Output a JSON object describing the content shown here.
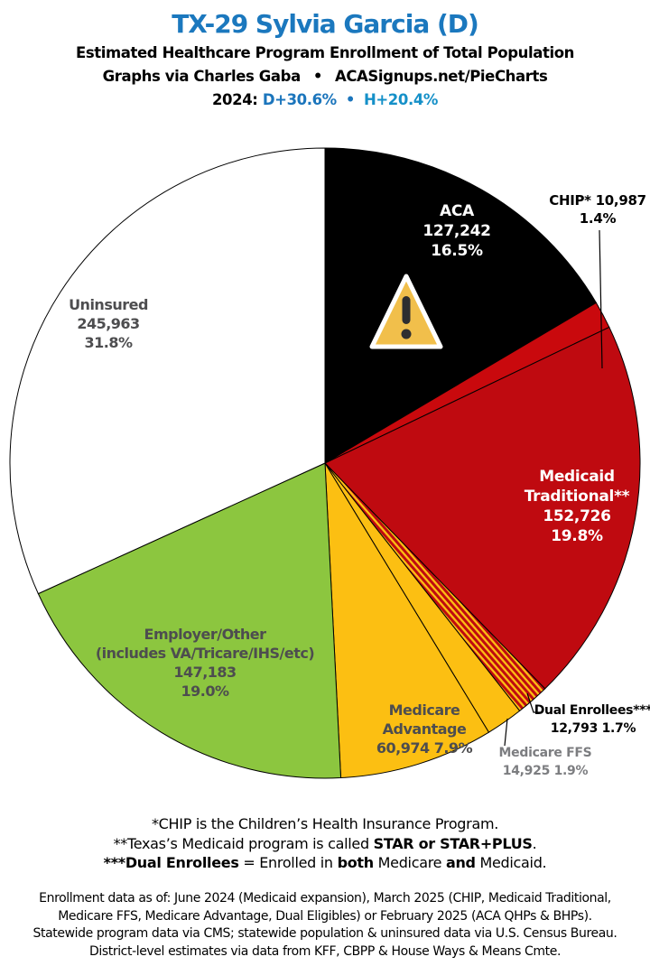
{
  "header": {
    "title": "TX-29 Sylvia Garcia (D)",
    "subtitle": "Estimated Healthcare Program Enrollment of Total Population",
    "credit_left": "Graphs via Charles Gaba",
    "credit_bullet": "•",
    "credit_right": "ACASignups.net/PieCharts",
    "year_label": "2024:",
    "d_margin": "D+30.6%",
    "margin_bullet": "•",
    "h_margin": "H+20.4%",
    "colors": {
      "title_blue": "#1B78BE",
      "d_blue": "#1B75BC",
      "h_teal": "#1590C8",
      "black": "#000000"
    }
  },
  "chart_data": {
    "type": "pie",
    "title": "Estimated Healthcare Program Enrollment of Total Population",
    "direction": "clockwise",
    "start_angle_deg": 0,
    "total_pct": 100.0,
    "stripe_colors": [
      "#BF0A10",
      "#FCBF12"
    ],
    "outline_color": "#000000",
    "slices": [
      {
        "name": "ACA",
        "enrollment": "127,242",
        "pct": 16.5,
        "color": "#000000",
        "label_lines": [
          "ACA",
          "127,242",
          "16.5%"
        ]
      },
      {
        "name": "CHIP",
        "enrollment": "10,987",
        "pct": 1.4,
        "color": "#C9090D",
        "label_lines": [
          "CHIP* 10,987",
          "1.4%"
        ]
      },
      {
        "name": "Medicaid Traditional",
        "enrollment": "152,726",
        "pct": 19.8,
        "color": "#BF0A10",
        "label_lines": [
          "Medicaid",
          "Traditional**",
          "152,726",
          "19.8%"
        ]
      },
      {
        "name": "Dual Enrollees",
        "enrollment": "12,793",
        "pct": 1.7,
        "color": "striped-red-gold",
        "label_lines": [
          "Dual Enrollees***",
          "12,793 1.7%"
        ]
      },
      {
        "name": "Medicare FFS",
        "enrollment": "14,925",
        "pct": 1.9,
        "color": "#FCBF12",
        "label_lines": [
          "Medicare FFS",
          "14,925 1.9%"
        ]
      },
      {
        "name": "Medicare Advantage",
        "enrollment": "60,974",
        "pct": 7.9,
        "color": "#FCBF12",
        "label_lines": [
          "Medicare",
          "Advantage",
          "60,974 7.9%"
        ]
      },
      {
        "name": "Employer/Other",
        "enrollment": "147,183",
        "pct": 19.0,
        "color": "#8CC63F",
        "label_lines": [
          "Employer/Other",
          "(includes VA/Tricare/IHS/etc)",
          "147,183",
          "19.0%"
        ]
      },
      {
        "name": "Uninsured",
        "enrollment": "245,963",
        "pct": 31.8,
        "color": "#FFFFFF",
        "label_lines": [
          "Uninsured",
          "245,963",
          "31.8%"
        ]
      }
    ],
    "icons": [
      {
        "name": "warning-triangle-icon",
        "fill": "#F1BF4B",
        "border": "#FFFFFF",
        "glyph_color": "#2E2E30"
      }
    ]
  },
  "footnotes": [
    {
      "segments": [
        {
          "t": "*CHIP is the Children’s Health Insurance Program.",
          "b": false
        }
      ]
    },
    {
      "segments": [
        {
          "t": "**Texas’s Medicaid program is called ",
          "b": false
        },
        {
          "t": "STAR or STAR+PLUS",
          "b": true
        },
        {
          "t": ".",
          "b": false
        }
      ]
    },
    {
      "segments": [
        {
          "t": "***Dual Enrollees",
          "b": true
        },
        {
          "t": " = Enrolled in ",
          "b": false
        },
        {
          "t": "both",
          "b": true
        },
        {
          "t": " Medicare ",
          "b": false
        },
        {
          "t": "and",
          "b": true
        },
        {
          "t": " Medicaid.",
          "b": false
        }
      ]
    }
  ],
  "source_lines": [
    "Enrollment data as of: June 2024 (Medicaid expansion), March 2025 (CHIP, Medicaid Traditional,",
    "Medicare FFS, Medicare Advantage, Dual Eligibles) or February 2025 (ACA QHPs & BHPs).",
    "Statewide program data via CMS; statewide population & uninsured data via U.S. Census Bureau.",
    "District-level estimates via data from KFF, CBPP & House Ways & Means Cmte."
  ]
}
